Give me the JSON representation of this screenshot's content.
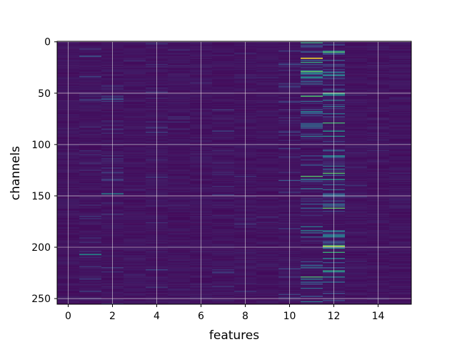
{
  "chart_data": {
    "type": "heatmap",
    "xlabel": "features",
    "ylabel": "channels",
    "n_columns": 16,
    "n_rows": 256,
    "xlim": [
      -0.5,
      15.5
    ],
    "ylim": [
      255.5,
      -0.5
    ],
    "xticks": [
      0,
      2,
      4,
      6,
      8,
      10,
      12,
      14
    ],
    "yticks": [
      0,
      50,
      100,
      150,
      200,
      250
    ],
    "grid": true,
    "colormap": "viridis",
    "colors": {
      "background": "#ffffff",
      "grid": "#e8e8e8",
      "axes": "#000000",
      "low": "#440154",
      "high": "#fde725"
    },
    "column_activity": [
      0.05,
      0.2,
      0.22,
      0.08,
      0.15,
      0.1,
      0.09,
      0.16,
      0.1,
      0.07,
      0.22,
      0.55,
      0.6,
      0.12,
      0.09,
      0.06
    ],
    "highlights": [
      {
        "feature": 11,
        "channel": 16,
        "value": 1.0
      },
      {
        "feature": 11,
        "channel": 29,
        "value": 0.75
      },
      {
        "feature": 11,
        "channel": 53,
        "value": 0.7
      },
      {
        "feature": 11,
        "channel": 131,
        "value": 0.7
      },
      {
        "feature": 11,
        "channel": 229,
        "value": 0.65
      },
      {
        "feature": 12,
        "channel": 10,
        "value": 0.7
      },
      {
        "feature": 12,
        "channel": 50,
        "value": 0.72
      },
      {
        "feature": 12,
        "channel": 79,
        "value": 0.65
      },
      {
        "feature": 12,
        "channel": 128,
        "value": 0.7
      },
      {
        "feature": 12,
        "channel": 162,
        "value": 0.72
      },
      {
        "feature": 12,
        "channel": 199,
        "value": 0.9
      },
      {
        "feature": 1,
        "channel": 207,
        "value": 0.5
      },
      {
        "feature": 2,
        "channel": 148,
        "value": 0.45
      }
    ]
  }
}
